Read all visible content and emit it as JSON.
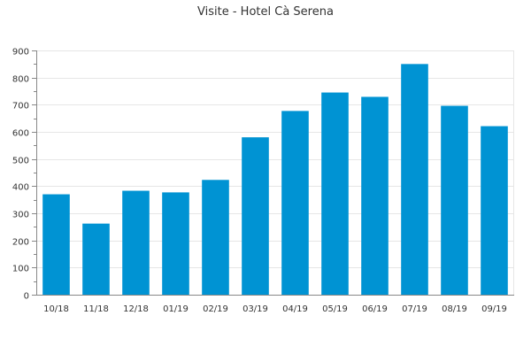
{
  "chart_data": {
    "type": "bar",
    "title": "Visite - Hotel Cà Serena",
    "xlabel": "",
    "ylabel": "",
    "categories": [
      "10/18",
      "11/18",
      "12/18",
      "01/19",
      "02/19",
      "03/19",
      "04/19",
      "05/19",
      "06/19",
      "07/19",
      "08/19",
      "09/19"
    ],
    "values": [
      370,
      262,
      383,
      377,
      423,
      580,
      677,
      745,
      729,
      850,
      696,
      621
    ],
    "ylim": [
      0,
      900
    ],
    "yticks": [
      0,
      100,
      200,
      300,
      400,
      500,
      600,
      700,
      800,
      900
    ],
    "grid": true,
    "legend": "none",
    "colors": {
      "bar": "#0093d3",
      "grid": "#e6e6e6",
      "axis": "#888888",
      "text": "#333333",
      "title": "#333333"
    }
  }
}
